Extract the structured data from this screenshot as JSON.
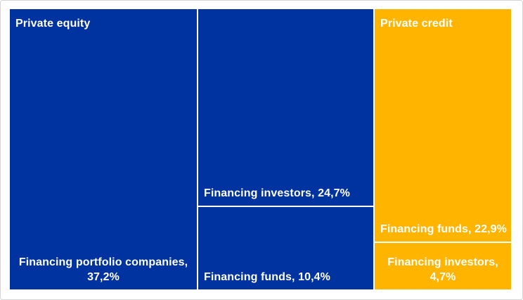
{
  "chart_data": {
    "type": "treemap",
    "unit": "%",
    "decimal_style": "comma",
    "text_color": "#FFFFFF",
    "divider_color": "#FFFFFF",
    "layout": {
      "legend": "none",
      "group_headers": "top-left",
      "labels": "bottom-of-tile",
      "grid": false
    },
    "groups": [
      {
        "name": "Private equity",
        "color": "#0033A0",
        "items": [
          {
            "name": "Financing portfolio companies",
            "value": 37.2,
            "label": "Financing portfolio companies, 37,2%"
          },
          {
            "name": "Financing investors",
            "value": 24.7,
            "label": "Financing investors, 24,7%"
          },
          {
            "name": "Financing funds",
            "value": 10.4,
            "label": "Financing funds, 10,4%"
          }
        ]
      },
      {
        "name": "Private credit",
        "color": "#FFB400",
        "items": [
          {
            "name": "Financing funds",
            "value": 22.9,
            "label": "Financing funds, 22,9%"
          },
          {
            "name": "Financing investors",
            "value": 4.7,
            "label": "Financing investors, 4,7%"
          }
        ]
      }
    ]
  }
}
